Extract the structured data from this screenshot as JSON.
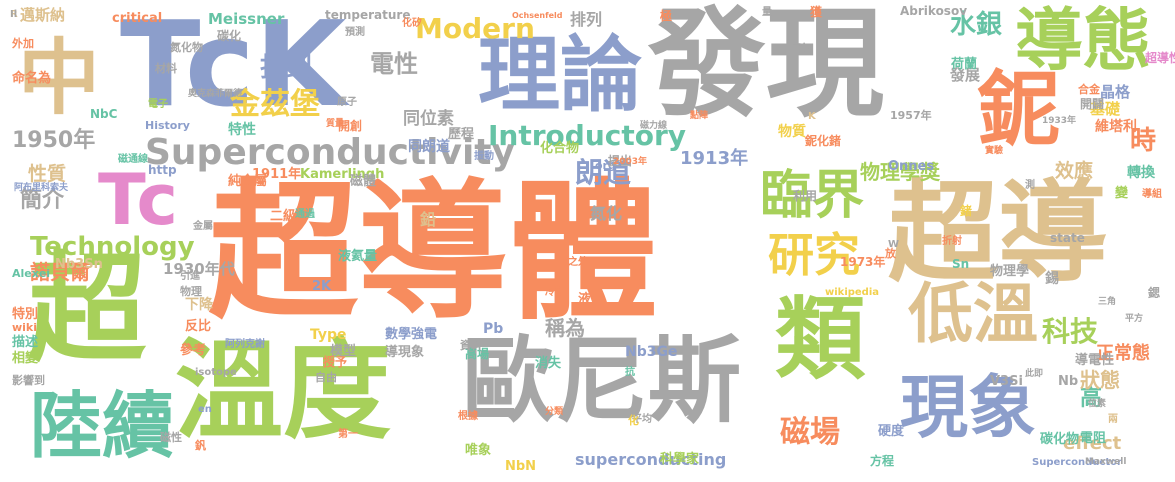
{
  "palette": {
    "orange": "#F78C5E",
    "green": "#A7D05A",
    "gray": "#A6A6A6",
    "blue": "#8C9ECB",
    "tan": "#DEC18E",
    "pink": "#E58ACB",
    "teal": "#66C3A5",
    "yellow": "#F2D04B"
  },
  "words": [
    {
      "text": "超導體",
      "color": "orange"
    },
    {
      "text": "發現",
      "color": "gray"
    },
    {
      "text": "TcK",
      "color": "blue"
    },
    {
      "text": "超導",
      "color": "tan"
    },
    {
      "text": "超",
      "color": "green"
    },
    {
      "text": "溫度",
      "color": "green"
    },
    {
      "text": "歐尼斯",
      "color": "gray"
    },
    {
      "text": "理論",
      "color": "blue"
    },
    {
      "text": "導態",
      "color": "green"
    },
    {
      "text": "鈮",
      "color": "orange"
    },
    {
      "text": "中",
      "color": "tan"
    },
    {
      "text": "類",
      "color": "green"
    },
    {
      "text": "陸續",
      "color": "teal"
    },
    {
      "text": "現象",
      "color": "blue"
    },
    {
      "text": "低溫",
      "color": "tan"
    },
    {
      "text": "臨界",
      "color": "green"
    },
    {
      "text": "Tc",
      "color": "pink"
    },
    {
      "text": "研究",
      "color": "yellow"
    },
    {
      "text": "Superconductivity",
      "color": "gray"
    },
    {
      "text": "Introductory",
      "color": "teal"
    },
    {
      "text": "Modern",
      "color": "yellow"
    },
    {
      "text": "Technology",
      "color": "green"
    },
    {
      "text": "金茲堡",
      "color": "yellow"
    },
    {
      "text": "找到",
      "color": "blue"
    },
    {
      "text": "電性",
      "color": "gray"
    },
    {
      "text": "水銀",
      "color": "teal"
    },
    {
      "text": "1950年",
      "color": "gray"
    },
    {
      "text": "簡介",
      "color": "gray"
    },
    {
      "text": "朗道",
      "color": "blue"
    },
    {
      "text": "磁場",
      "color": "orange"
    },
    {
      "text": "科技",
      "color": "green"
    },
    {
      "text": "時",
      "color": "orange"
    },
    {
      "text": "高",
      "color": "teal"
    },
    {
      "text": "物理學獎",
      "color": "green"
    },
    {
      "text": "諾貝爾",
      "color": "orange"
    },
    {
      "text": "稱為",
      "color": "gray"
    },
    {
      "text": "狀態",
      "color": "tan"
    },
    {
      "text": "效應",
      "color": "tan"
    },
    {
      "text": "正常態",
      "color": "orange"
    },
    {
      "text": "1913年",
      "color": "blue"
    },
    {
      "text": "superconducting",
      "color": "blue"
    },
    {
      "text": "effect",
      "color": "tan"
    },
    {
      "text": "性質",
      "color": "tan"
    },
    {
      "text": "同位素",
      "color": "gray"
    },
    {
      "text": "邁斯納",
      "color": "tan"
    },
    {
      "text": "Meissner",
      "color": "teal"
    },
    {
      "text": "critical",
      "color": "orange"
    },
    {
      "text": "排列",
      "color": "gray"
    },
    {
      "text": "晶格",
      "color": "blue"
    },
    {
      "text": "基礎",
      "color": "yellow"
    },
    {
      "text": "發展",
      "color": "gray"
    },
    {
      "text": "荷蘭",
      "color": "teal"
    },
    {
      "text": "超導性",
      "color": "pink"
    },
    {
      "text": "維塔利",
      "color": "orange"
    },
    {
      "text": "轉換",
      "color": "teal"
    },
    {
      "text": "1911年",
      "color": "orange"
    },
    {
      "text": "Kamerlingh",
      "color": "green"
    },
    {
      "text": "Onnes",
      "color": "blue"
    },
    {
      "text": "1957年",
      "color": "gray"
    },
    {
      "text": "1973年",
      "color": "orange"
    },
    {
      "text": "1930年代",
      "color": "gray"
    },
    {
      "text": "純金屬",
      "color": "orange"
    },
    {
      "text": "二級",
      "color": "orange"
    },
    {
      "text": "Type",
      "color": "yellow"
    },
    {
      "text": "液氦量",
      "color": "teal"
    },
    {
      "text": "磁體",
      "color": "gray"
    },
    {
      "text": "氮化",
      "color": "gray"
    },
    {
      "text": "鉛",
      "color": "tan"
    },
    {
      "text": "物理學",
      "color": "gray"
    },
    {
      "text": "Sn",
      "color": "teal"
    },
    {
      "text": "state",
      "color": "gray"
    },
    {
      "text": "化合物",
      "color": "green"
    },
    {
      "text": "模型",
      "color": "gray"
    },
    {
      "text": "數學強電",
      "color": "blue"
    },
    {
      "text": "導現象",
      "color": "gray"
    },
    {
      "text": "高場",
      "color": "teal"
    },
    {
      "text": "消失",
      "color": "teal"
    },
    {
      "text": "Nb3Ge",
      "color": "blue"
    },
    {
      "text": "Nb3Sn",
      "color": "tan"
    },
    {
      "text": "NbC",
      "color": "teal"
    },
    {
      "text": "NbN",
      "color": "yellow"
    },
    {
      "text": "V3Si",
      "color": "gray"
    },
    {
      "text": "Pb",
      "color": "blue"
    },
    {
      "text": "2K",
      "color": "blue"
    },
    {
      "text": "Alexei",
      "color": "teal"
    },
    {
      "text": "Abrikosov",
      "color": "gray"
    },
    {
      "text": "temperature",
      "color": "gray"
    },
    {
      "text": "Ochsenfeld",
      "color": "orange"
    },
    {
      "text": "History",
      "color": "blue"
    },
    {
      "text": "http",
      "color": "blue"
    },
    {
      "text": "org",
      "color": "blue"
    },
    {
      "text": "wikipedia",
      "color": "yellow"
    },
    {
      "text": "wiki",
      "color": "orange"
    },
    {
      "text": "isotope",
      "color": "gray"
    },
    {
      "text": "en",
      "color": "blue"
    },
    {
      "text": "Superconductor",
      "color": "blue"
    },
    {
      "text": "Maxwell",
      "color": "gray"
    },
    {
      "text": "Nb",
      "color": "gray"
    },
    {
      "text": "電阻",
      "color": "teal"
    },
    {
      "text": "碳化物",
      "color": "teal"
    },
    {
      "text": "導電性",
      "color": "gray"
    },
    {
      "text": "科學家",
      "color": "green"
    },
    {
      "text": "方程",
      "color": "teal"
    },
    {
      "text": "硬度",
      "color": "blue"
    },
    {
      "text": "唯象",
      "color": "green"
    },
    {
      "text": "下降",
      "color": "tan"
    },
    {
      "text": "反比",
      "color": "orange"
    },
    {
      "text": "參考",
      "color": "orange"
    },
    {
      "text": "特別",
      "color": "orange"
    },
    {
      "text": "描述",
      "color": "teal"
    },
    {
      "text": "相變",
      "color": "green"
    },
    {
      "text": "影響到",
      "color": "gray"
    },
    {
      "text": "命名為",
      "color": "orange"
    },
    {
      "text": "外加",
      "color": "orange"
    },
    {
      "text": "氮化物",
      "color": "gray"
    },
    {
      "text": "材料",
      "color": "gray"
    },
    {
      "text": "碳化",
      "color": "gray"
    },
    {
      "text": "化矽",
      "color": "orange"
    },
    {
      "text": "預測",
      "color": "gray"
    },
    {
      "text": "開創",
      "color": "orange"
    },
    {
      "text": "特性",
      "color": "teal"
    },
    {
      "text": "同朗道",
      "color": "blue"
    },
    {
      "text": "歷程",
      "color": "gray"
    },
    {
      "text": "提出",
      "color": "gray"
    },
    {
      "text": "利用",
      "color": "gray"
    },
    {
      "text": "物質",
      "color": "yellow"
    },
    {
      "text": "鈮化鍺",
      "color": "orange"
    },
    {
      "text": "合金",
      "color": "orange"
    },
    {
      "text": "開闢",
      "color": "gray"
    },
    {
      "text": "氦氣",
      "color": "gray"
    },
    {
      "text": "電子",
      "color": "green"
    },
    {
      "text": "原子",
      "color": "gray"
    },
    {
      "text": "質量",
      "color": "orange"
    },
    {
      "text": "振動",
      "color": "blue"
    },
    {
      "text": "磁通線",
      "color": "teal"
    },
    {
      "text": "阿布里科索夫",
      "color": "blue"
    },
    {
      "text": "引進",
      "color": "gray"
    },
    {
      "text": "物理",
      "color": "gray"
    },
    {
      "text": "授予",
      "color": "orange"
    },
    {
      "text": "自由",
      "color": "gray"
    },
    {
      "text": "阿列克謝",
      "color": "blue"
    },
    {
      "text": "液化",
      "color": "orange"
    },
    {
      "text": "冷卻",
      "color": "orange"
    },
    {
      "text": "資料",
      "color": "gray"
    },
    {
      "text": "第一",
      "color": "orange"
    },
    {
      "text": "根據",
      "color": "orange"
    },
    {
      "text": "分類",
      "color": "orange"
    },
    {
      "text": "平均",
      "color": "gray"
    },
    {
      "text": "磁性",
      "color": "gray"
    },
    {
      "text": "鍶",
      "color": "gray"
    },
    {
      "text": "平方",
      "color": "gray"
    },
    {
      "text": "三角",
      "color": "gray"
    },
    {
      "text": "位素",
      "color": "gray"
    },
    {
      "text": "導組",
      "color": "orange"
    },
    {
      "text": "實驗",
      "color": "orange"
    },
    {
      "text": "變",
      "color": "green"
    },
    {
      "text": "極",
      "color": "orange"
    },
    {
      "text": "磁力線",
      "color": "gray"
    },
    {
      "text": "之外",
      "color": "orange"
    },
    {
      "text": "奧克森菲爾德",
      "color": "gray"
    },
    {
      "text": "金屬",
      "color": "gray"
    },
    {
      "text": "通過",
      "color": "teal"
    },
    {
      "text": "點陣",
      "color": "orange"
    },
    {
      "text": "2003年",
      "color": "orange"
    },
    {
      "text": "1933年",
      "color": "gray"
    },
    {
      "text": "鍺",
      "color": "yellow"
    },
    {
      "text": "錫",
      "color": "gray"
    },
    {
      "text": "釩",
      "color": "orange"
    },
    {
      "text": "抗",
      "color": "teal"
    },
    {
      "text": "化",
      "color": "yellow"
    },
    {
      "text": "此即",
      "color": "gray"
    },
    {
      "text": "兩",
      "color": "tan"
    },
    {
      "text": "獲",
      "color": "orange"
    },
    {
      "text": "量",
      "color": "gray"
    },
    {
      "text": "放",
      "color": "orange"
    },
    {
      "text": "測",
      "color": "gray"
    },
    {
      "text": "折射",
      "color": "orange"
    },
    {
      "text": "W",
      "color": "gray"
    },
    {
      "text": "K",
      "color": "tan"
    },
    {
      "text": "R",
      "color": "tan"
    },
    {
      "text": "Il",
      "color": "gray"
    }
  ]
}
